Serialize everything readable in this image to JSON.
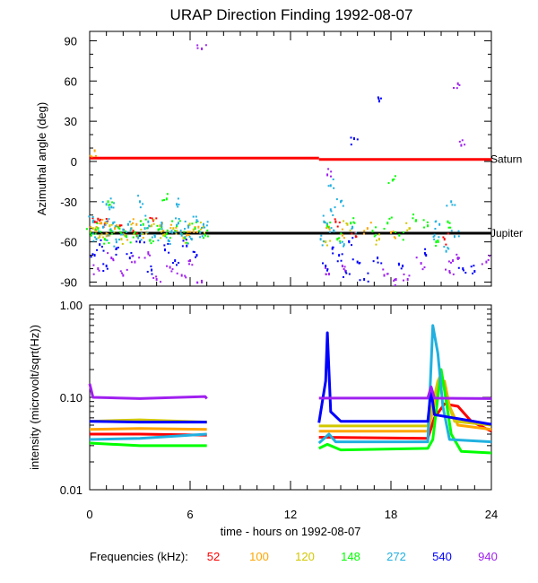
{
  "chart_data": [
    {
      "type": "scatter",
      "title": "URAP Direction Finding  1992-08-07",
      "xlabel": "",
      "ylabel": "Azimuthal angle (deg)",
      "xlim": [
        0,
        24
      ],
      "ylim": [
        -93,
        97
      ],
      "yticks": [
        -90,
        -60,
        -30,
        0,
        30,
        60,
        90
      ],
      "reference_lines": [
        {
          "name": "Saturn",
          "label": "Saturn",
          "color": "#ff0000",
          "segments": [
            {
              "x": [
                0,
                13.7
              ],
              "y": 2.5
            },
            {
              "x": [
                13.7,
                24
              ],
              "y": 1.5
            }
          ]
        },
        {
          "name": "Jupiter",
          "label": "Jupiter",
          "color": "#000000",
          "segments": [
            {
              "x": [
                0,
                24
              ],
              "y": -53.5
            }
          ]
        }
      ],
      "series": [
        {
          "name": "52",
          "color": "#ff0000",
          "points": [
            [
              0.3,
              -45
            ],
            [
              0.5,
              -43
            ],
            [
              0.9,
              -47
            ],
            [
              1.8,
              -48
            ],
            [
              2.6,
              -52
            ],
            [
              3.8,
              -44
            ],
            [
              14.7,
              -45
            ],
            [
              15.9,
              -56
            ],
            [
              21.2,
              -58
            ]
          ]
        },
        {
          "name": "100",
          "color": "#ffa500",
          "points": [
            [
              0.4,
              -52
            ],
            [
              0.7,
              -46
            ],
            [
              1.0,
              -54
            ],
            [
              1.5,
              -50
            ],
            [
              2.1,
              -55
            ],
            [
              2.8,
              -47
            ],
            [
              3.4,
              -53
            ],
            [
              4.2,
              -48
            ],
            [
              5.1,
              -52
            ],
            [
              5.8,
              -55
            ],
            [
              6.5,
              -49
            ],
            [
              0.3,
              8
            ],
            [
              14.3,
              -49
            ],
            [
              15.1,
              -55
            ],
            [
              16.6,
              -50
            ],
            [
              18.0,
              -53
            ]
          ]
        },
        {
          "name": "120",
          "color": "#d2c800",
          "points": [
            [
              0.2,
              -50
            ],
            [
              0.6,
              -56
            ],
            [
              1.2,
              -48
            ],
            [
              1.9,
              -58
            ],
            [
              2.5,
              -50
            ],
            [
              3.1,
              -54
            ],
            [
              3.7,
              -48
            ],
            [
              4.4,
              -55
            ],
            [
              5.0,
              -50
            ],
            [
              5.6,
              -57
            ],
            [
              6.2,
              -51
            ],
            [
              6.8,
              -49
            ],
            [
              14.1,
              -60
            ],
            [
              15.4,
              -47
            ],
            [
              17.3,
              -58
            ],
            [
              19.1,
              -50
            ]
          ]
        },
        {
          "name": "148",
          "color": "#00ff00",
          "points": [
            [
              0.1,
              -55
            ],
            [
              0.5,
              -50
            ],
            [
              0.9,
              -58
            ],
            [
              1.3,
              -52
            ],
            [
              1.7,
              -49
            ],
            [
              2.2,
              -56
            ],
            [
              2.7,
              -53
            ],
            [
              3.2,
              -47
            ],
            [
              3.6,
              -59
            ],
            [
              4.1,
              -51
            ],
            [
              4.6,
              -54
            ],
            [
              5.2,
              -48
            ],
            [
              5.7,
              -57
            ],
            [
              6.3,
              -50
            ],
            [
              6.9,
              -55
            ],
            [
              1.1,
              -30
            ],
            [
              4.6,
              -28
            ],
            [
              14.2,
              -48
            ],
            [
              14.8,
              -58
            ],
            [
              15.6,
              -46
            ],
            [
              16.9,
              -52
            ],
            [
              17.8,
              -46
            ],
            [
              18.5,
              -55
            ],
            [
              19.5,
              -44
            ],
            [
              20.2,
              -48
            ],
            [
              20.7,
              -60
            ],
            [
              21.4,
              -45
            ],
            [
              18.1,
              -14
            ]
          ]
        },
        {
          "name": "272",
          "color": "#20b0e0",
          "points": [
            [
              0.2,
              -45
            ],
            [
              0.4,
              -58
            ],
            [
              0.8,
              -49
            ],
            [
              1.1,
              -55
            ],
            [
              1.4,
              -46
            ],
            [
              1.6,
              -60
            ],
            [
              2.0,
              -51
            ],
            [
              2.3,
              -47
            ],
            [
              2.9,
              -57
            ],
            [
              3.3,
              -50
            ],
            [
              3.5,
              -45
            ],
            [
              3.9,
              -56
            ],
            [
              4.3,
              -48
            ],
            [
              4.7,
              -59
            ],
            [
              4.9,
              -52
            ],
            [
              5.3,
              -46
            ],
            [
              5.5,
              -55
            ],
            [
              5.9,
              -49
            ],
            [
              6.1,
              -58
            ],
            [
              6.4,
              -44
            ],
            [
              6.6,
              -53
            ],
            [
              6.8,
              -47
            ],
            [
              1.0,
              -32
            ],
            [
              1.3,
              -34
            ],
            [
              3.0,
              -30
            ],
            [
              5.2,
              -32
            ],
            [
              13.8,
              -58
            ],
            [
              14.0,
              -45
            ],
            [
              14.4,
              -36
            ],
            [
              14.6,
              -52
            ],
            [
              15.0,
              -30
            ],
            [
              15.2,
              -62
            ],
            [
              15.7,
              -49
            ],
            [
              20.6,
              -55
            ],
            [
              20.9,
              -47
            ],
            [
              21.3,
              -67
            ],
            [
              21.6,
              -30
            ],
            [
              21.8,
              -56
            ],
            [
              14.4,
              -18
            ]
          ]
        },
        {
          "name": "540",
          "color": "#0000ff",
          "points": [
            [
              0.3,
              -70
            ],
            [
              0.6,
              -62
            ],
            [
              1.0,
              -78
            ],
            [
              1.6,
              -65
            ],
            [
              2.4,
              -72
            ],
            [
              3.0,
              -60
            ],
            [
              3.7,
              -81
            ],
            [
              4.5,
              -66
            ],
            [
              5.1,
              -74
            ],
            [
              5.8,
              -63
            ],
            [
              6.4,
              -70
            ],
            [
              14.1,
              -78
            ],
            [
              14.5,
              -65
            ],
            [
              14.9,
              -70
            ],
            [
              15.3,
              -82
            ],
            [
              15.5,
              -60
            ],
            [
              16.0,
              -75
            ],
            [
              16.4,
              -88
            ],
            [
              17.2,
              -72
            ],
            [
              18.7,
              -78
            ],
            [
              20.1,
              -70
            ],
            [
              22.3,
              -80
            ],
            [
              23.0,
              -82
            ],
            [
              15.8,
              17
            ],
            [
              17.3,
              45
            ]
          ]
        },
        {
          "name": "940",
          "color": "#a020f0",
          "points": [
            [
              0.5,
              -80
            ],
            [
              1.3,
              -72
            ],
            [
              2.0,
              -85
            ],
            [
              2.7,
              -75
            ],
            [
              3.5,
              -68
            ],
            [
              4.0,
              -88
            ],
            [
              4.8,
              -79
            ],
            [
              5.5,
              -85
            ],
            [
              6.0,
              -74
            ],
            [
              6.7,
              -90
            ],
            [
              14.3,
              -84
            ],
            [
              15.1,
              -78
            ],
            [
              17.6,
              -85
            ],
            [
              19.0,
              -88
            ],
            [
              19.8,
              -76
            ],
            [
              21.5,
              -82
            ],
            [
              22.0,
              -72
            ],
            [
              23.7,
              -75
            ],
            [
              6.7,
              84
            ],
            [
              22.0,
              58
            ],
            [
              22.2,
              12
            ],
            [
              21.7,
              -74
            ],
            [
              14.2,
              -10
            ],
            [
              18.3,
              -88
            ]
          ]
        }
      ]
    },
    {
      "type": "line",
      "xlabel": "time - hours on 1992-08-07",
      "ylabel": "intensity (microvolt/sqrt(Hz))",
      "xlim": [
        0,
        24
      ],
      "ylim": [
        0.01,
        1.0
      ],
      "yscale": "log",
      "xticks": [
        0,
        6,
        12,
        18,
        24
      ],
      "xtick_labels": [
        "0",
        "6",
        "12",
        "18",
        "24"
      ],
      "yticks": [
        0.01,
        0.1,
        1.0
      ],
      "ytick_labels": [
        "0.01",
        "0.10",
        "1.00"
      ],
      "series": [
        {
          "name": "52",
          "color": "#ff0000",
          "points": [
            [
              0,
              0.04
            ],
            [
              3,
              0.04
            ],
            [
              7,
              0.039
            ],
            [
              13.7,
              0.037
            ],
            [
              20.2,
              0.036
            ],
            [
              20.6,
              0.06
            ],
            [
              21.2,
              0.085
            ],
            [
              22.0,
              0.08
            ],
            [
              22.8,
              0.055
            ],
            [
              24,
              0.043
            ]
          ]
        },
        {
          "name": "100",
          "color": "#ffa500",
          "points": [
            [
              0,
              0.045
            ],
            [
              3,
              0.046
            ],
            [
              7,
              0.045
            ],
            [
              13.7,
              0.043
            ],
            [
              20.2,
              0.043
            ],
            [
              20.8,
              0.12
            ],
            [
              21.2,
              0.15
            ],
            [
              21.5,
              0.08
            ],
            [
              22.0,
              0.05
            ],
            [
              24,
              0.045
            ]
          ]
        },
        {
          "name": "120",
          "color": "#d2c800",
          "points": [
            [
              0,
              0.055
            ],
            [
              3,
              0.057
            ],
            [
              7,
              0.054
            ],
            [
              13.7,
              0.049
            ],
            [
              20.2,
              0.049
            ],
            [
              20.8,
              0.15
            ],
            [
              21.0,
              0.18
            ],
            [
              21.3,
              0.1
            ],
            [
              21.8,
              0.055
            ],
            [
              24,
              0.05
            ]
          ]
        },
        {
          "name": "148",
          "color": "#00ff00",
          "points": [
            [
              0,
              0.032
            ],
            [
              3,
              0.03
            ],
            [
              7,
              0.03
            ],
            [
              13.7,
              0.028
            ],
            [
              14.2,
              0.031
            ],
            [
              15.0,
              0.027
            ],
            [
              20.2,
              0.028
            ],
            [
              20.5,
              0.035
            ],
            [
              21.0,
              0.2
            ],
            [
              21.2,
              0.12
            ],
            [
              21.6,
              0.04
            ],
            [
              22.2,
              0.026
            ],
            [
              24,
              0.025
            ]
          ]
        },
        {
          "name": "272",
          "color": "#20b0e0",
          "points": [
            [
              0,
              0.035
            ],
            [
              3,
              0.036
            ],
            [
              7,
              0.04
            ],
            [
              13.7,
              0.032
            ],
            [
              14.3,
              0.04
            ],
            [
              14.7,
              0.033
            ],
            [
              20.2,
              0.033
            ],
            [
              20.5,
              0.6
            ],
            [
              20.8,
              0.3
            ],
            [
              21.1,
              0.08
            ],
            [
              21.5,
              0.035
            ],
            [
              24,
              0.033
            ]
          ]
        },
        {
          "name": "540",
          "color": "#0000ff",
          "points": [
            [
              0,
              0.055
            ],
            [
              3,
              0.054
            ],
            [
              7,
              0.054
            ],
            [
              13.7,
              0.053
            ],
            [
              14.1,
              0.15
            ],
            [
              14.2,
              0.5
            ],
            [
              14.4,
              0.07
            ],
            [
              15.0,
              0.055
            ],
            [
              20.2,
              0.055
            ],
            [
              20.4,
              0.12
            ],
            [
              20.6,
              0.065
            ],
            [
              24,
              0.051
            ]
          ]
        },
        {
          "name": "940",
          "color": "#a020f0",
          "points": [
            [
              0,
              0.14
            ],
            [
              0.2,
              0.1
            ],
            [
              3,
              0.097
            ],
            [
              6.9,
              0.102
            ],
            [
              7.0,
              0.097
            ],
            [
              13.7,
              0.098
            ],
            [
              20.2,
              0.098
            ],
            [
              20.4,
              0.13
            ],
            [
              20.6,
              0.098
            ],
            [
              24,
              0.097
            ]
          ]
        }
      ],
      "gaps": [
        [
          7.0,
          13.7
        ]
      ]
    }
  ],
  "legend": {
    "title": "Frequencies (kHz):",
    "entries": [
      {
        "label": "52",
        "color": "#ff0000"
      },
      {
        "label": "100",
        "color": "#ffa500"
      },
      {
        "label": "120",
        "color": "#d2c800"
      },
      {
        "label": "148",
        "color": "#00ff00"
      },
      {
        "label": "272",
        "color": "#20b0e0"
      },
      {
        "label": "540",
        "color": "#0000ff"
      },
      {
        "label": "940",
        "color": "#a020f0"
      }
    ]
  }
}
